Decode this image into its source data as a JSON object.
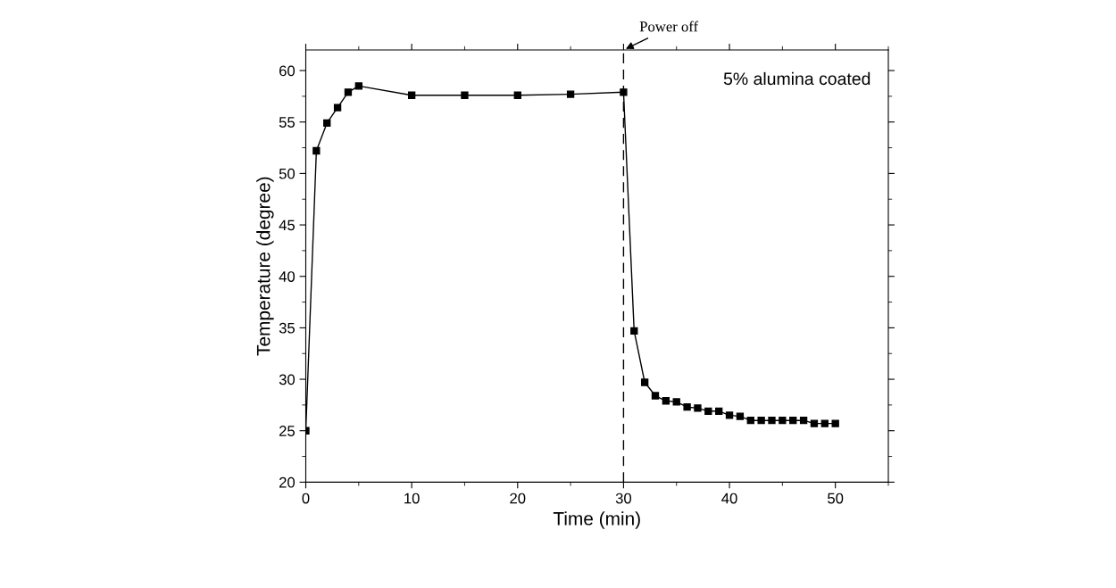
{
  "chart_data": {
    "type": "line",
    "xlabel": "Time (min)",
    "ylabel": "Temperature (degree)",
    "x": [
      0,
      1,
      2,
      3,
      4,
      5,
      10,
      15,
      20,
      25,
      30,
      31,
      32,
      33,
      34,
      35,
      36,
      37,
      38,
      39,
      40,
      41,
      42,
      43,
      44,
      45,
      46,
      47,
      48,
      49,
      50
    ],
    "series": [
      {
        "color": "#000000",
        "values": [
          25.0,
          52.2,
          54.9,
          56.4,
          57.9,
          58.5,
          57.6,
          57.6,
          57.6,
          57.7,
          57.9,
          34.7,
          29.7,
          28.4,
          27.9,
          27.8,
          27.3,
          27.2,
          26.9,
          26.9,
          26.5,
          26.4,
          26.0,
          26.0,
          26.0,
          26.0,
          26.0,
          26.0,
          25.7,
          25.7,
          25.7
        ]
      }
    ],
    "xlim": [
      0,
      55
    ],
    "ylim": [
      20,
      62
    ],
    "xticks": [
      0,
      10,
      20,
      30,
      40,
      50
    ],
    "yticks": [
      20,
      25,
      30,
      35,
      40,
      45,
      50,
      55,
      60
    ],
    "marker": "square",
    "line_style": "solid",
    "grid": false,
    "legend": false,
    "ref_lines": [
      {
        "axis": "x",
        "value": 30,
        "label": "Power off",
        "line_style": "dashed",
        "color": "#000000"
      }
    ],
    "annotations": [
      "5% alumina coated"
    ]
  }
}
